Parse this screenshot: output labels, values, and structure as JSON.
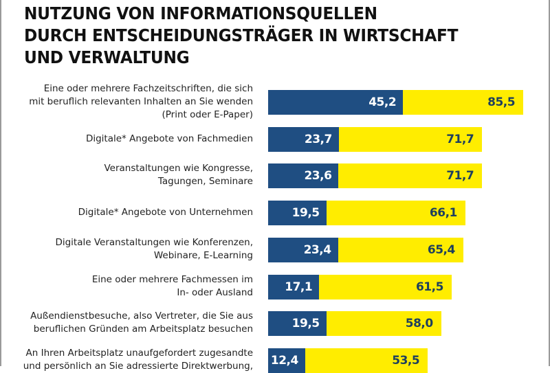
{
  "title": "NUTZUNG VON INFORMATIONSQUELLEN\nDURCH ENTSCHEIDUNGSTRÄGER IN WIRTSCHAFT\nUND VERWALTUNG",
  "colors": {
    "series_part": "#1f4e82",
    "series_total": "#ffed00",
    "label_on_part": "#ffffff",
    "label_on_total": "#1d3f5e"
  },
  "chart_data": {
    "type": "bar",
    "orientation": "horizontal",
    "title": "NUTZUNG VON INFORMATIONSQUELLEN DURCH ENTSCHEIDUNGSTRÄGER IN WIRTSCHAFT UND VERWALTUNG",
    "xlabel": "",
    "ylabel": "",
    "grid": false,
    "overlapping": true,
    "categories": [
      "Eine oder mehrere Fachzeitschriften, die sich\nmit beruflich relevanten Inhalten an Sie wenden\n(Print oder E-Paper)",
      "Digitale* Angebote von Fachmedien",
      "Veranstaltungen wie Kongresse,\nTagungen, Seminare",
      "Digitale* Angebote von Unternehmen",
      "Digitale Veranstaltungen wie Konferenzen,\nWebinare, E-Learning",
      "Eine oder mehrere Fachmessen im\nIn- oder Ausland",
      "Außendienstbesuche, also Vertreter, die Sie aus\nberuflichen Gründen am Arbeitsplatz besuchen",
      "An Ihren Arbeitsplatz unaufgefordert zugesandte\nund persönlich an Sie adressierte Direktwerbung,"
    ],
    "series": [
      {
        "name": "blue",
        "values": [
          45.2,
          23.7,
          23.6,
          19.5,
          23.4,
          17.1,
          19.5,
          12.4
        ],
        "labels": [
          "45,2",
          "23,7",
          "23,6",
          "19,5",
          "23,4",
          "17,1",
          "19,5",
          "12,4"
        ]
      },
      {
        "name": "yellow",
        "values": [
          85.5,
          71.7,
          71.7,
          66.1,
          65.4,
          61.5,
          58.0,
          53.5
        ],
        "labels": [
          "85,5",
          "71,7",
          "71,7",
          "66,1",
          "65,4",
          "61,5",
          "58,0",
          "53,5"
        ]
      }
    ],
    "xlim": [
      0,
      100
    ]
  }
}
